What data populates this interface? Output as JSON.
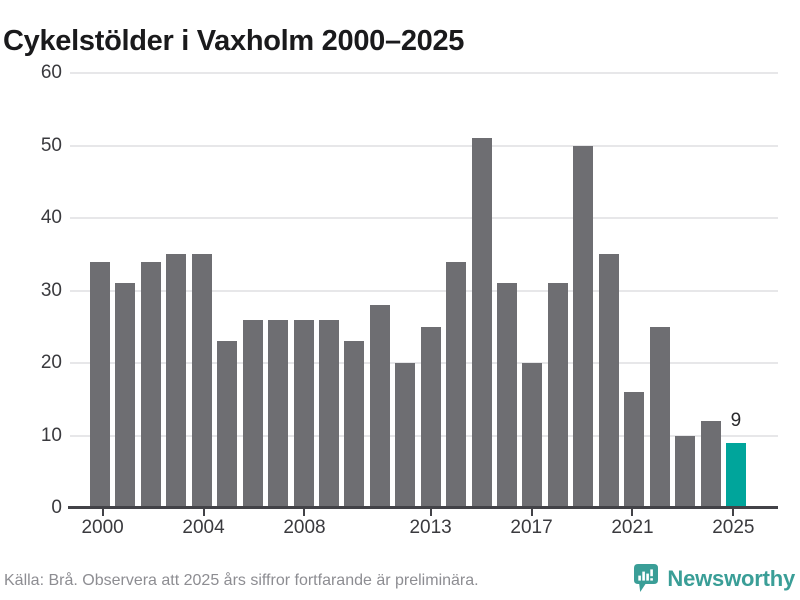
{
  "title": "Cykelstölder i Vaxholm 2000–2025",
  "chart_data": {
    "type": "bar",
    "title": "Cykelstölder i Vaxholm 2000–2025",
    "categories": [
      "2000",
      "2001",
      "2002",
      "2003",
      "2004",
      "2005",
      "2006",
      "2007",
      "2008",
      "2009",
      "2010",
      "2011",
      "2012",
      "2013",
      "2014",
      "2015",
      "2016",
      "2017",
      "2018",
      "2019",
      "2020",
      "2021",
      "2022",
      "2023",
      "2024",
      "2025"
    ],
    "values": [
      34,
      31,
      34,
      35,
      35,
      23,
      26,
      26,
      26,
      26,
      23,
      28,
      20,
      25,
      34,
      51,
      31,
      20,
      31,
      50,
      35,
      16,
      25,
      10,
      12,
      9
    ],
    "xlabel": "",
    "ylabel": "",
    "ylim": [
      0,
      60
    ],
    "yticks": [
      0,
      10,
      20,
      30,
      40,
      50,
      60
    ],
    "xtick_labels": [
      "2000",
      "2004",
      "2008",
      "2013",
      "2017",
      "2021",
      "2025"
    ],
    "xtick_indices": [
      0,
      4,
      8,
      13,
      17,
      21,
      25
    ],
    "grid": "horizontal",
    "legend_position": "none",
    "highlight": {
      "index": 25,
      "category": "2025",
      "value": 9,
      "label": "9"
    },
    "colors": {
      "bar": "#6E6E72",
      "highlight": "#00A59B",
      "grid": "#E7E7E9",
      "axis": "#424247",
      "tick_text": "#3A3A3E",
      "annotation_text": "#2A2A2C",
      "title_text": "#1A1A1C"
    }
  },
  "footer": {
    "source": "Källa: Brå. Observera att 2025 års siffror fortfarande är preliminära."
  },
  "branding": {
    "name": "Newsworthy",
    "icon": "newsworthy-speech-bubble-chart-icon",
    "color": "#3A9E97"
  }
}
